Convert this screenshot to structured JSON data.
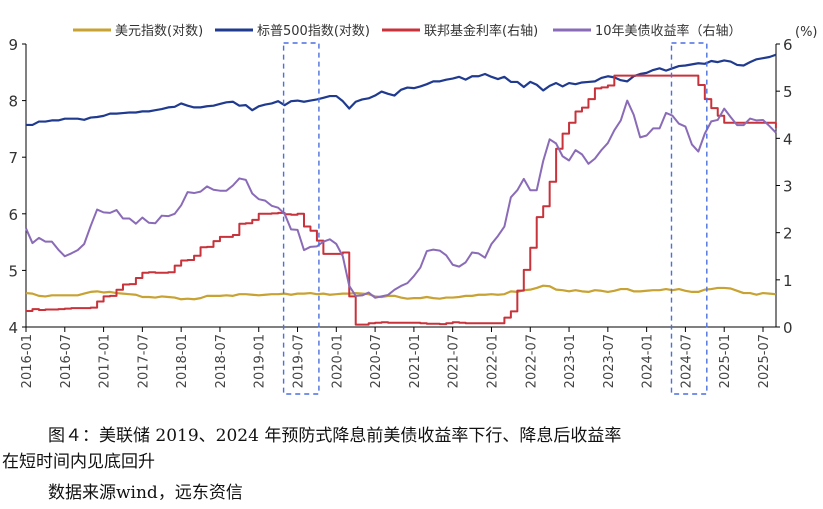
{
  "chart_data": {
    "type": "line",
    "x_start": "2016-01",
    "x_frequency": "monthly",
    "x_tick_labels": [
      "2016-01",
      "2016-07",
      "2017-01",
      "2017-07",
      "2018-01",
      "2018-07",
      "2019-01",
      "2019-07",
      "2020-01",
      "2020-07",
      "2021-01",
      "2021-07",
      "2022-01",
      "2022-07",
      "2023-01",
      "2023-07",
      "2024-01",
      "2024-07",
      "2025-01",
      "2025-07"
    ],
    "y_left": {
      "range": [
        4,
        9
      ],
      "ticks": [
        "4",
        "5",
        "6",
        "7",
        "8",
        "9"
      ]
    },
    "y_right": {
      "range": [
        0,
        6
      ],
      "ticks": [
        "0",
        "1",
        "2",
        "3",
        "4",
        "5",
        "6"
      ],
      "unit_label": "(%)"
    },
    "grid": false,
    "legend_position": "top",
    "highlight_periods": [
      [
        "2019-05",
        "2019-10"
      ],
      [
        "2024-05",
        "2024-10"
      ]
    ],
    "series": [
      {
        "name": "美元指数(对数)",
        "axis": "left",
        "color": "#c8a232",
        "values": [
          4.6,
          4.59,
          4.55,
          4.54,
          4.56,
          4.56,
          4.56,
          4.56,
          4.56,
          4.59,
          4.62,
          4.63,
          4.61,
          4.62,
          4.6,
          4.59,
          4.58,
          4.57,
          4.53,
          4.53,
          4.52,
          4.54,
          4.53,
          4.52,
          4.49,
          4.5,
          4.49,
          4.51,
          4.55,
          4.55,
          4.55,
          4.56,
          4.55,
          4.58,
          4.58,
          4.57,
          4.56,
          4.57,
          4.58,
          4.58,
          4.59,
          4.57,
          4.59,
          4.59,
          4.6,
          4.58,
          4.59,
          4.57,
          4.58,
          4.59,
          4.59,
          4.6,
          4.59,
          4.58,
          4.54,
          4.53,
          4.55,
          4.55,
          4.52,
          4.5,
          4.51,
          4.51,
          4.53,
          4.51,
          4.5,
          4.52,
          4.52,
          4.53,
          4.55,
          4.55,
          4.57,
          4.57,
          4.58,
          4.57,
          4.58,
          4.63,
          4.62,
          4.65,
          4.66,
          4.69,
          4.73,
          4.72,
          4.66,
          4.65,
          4.63,
          4.65,
          4.63,
          4.62,
          4.65,
          4.64,
          4.62,
          4.64,
          4.67,
          4.67,
          4.63,
          4.63,
          4.64,
          4.65,
          4.65,
          4.67,
          4.65,
          4.67,
          4.64,
          4.62,
          4.62,
          4.66,
          4.67,
          4.69,
          4.69,
          4.68,
          4.64,
          4.6,
          4.6,
          4.57,
          4.6,
          4.59,
          4.58
        ]
      },
      {
        "name": "标普500指数(对数)",
        "axis": "left",
        "color": "#1f3a8f",
        "values": [
          7.57,
          7.57,
          7.63,
          7.63,
          7.65,
          7.65,
          7.68,
          7.68,
          7.68,
          7.66,
          7.7,
          7.71,
          7.73,
          7.77,
          7.77,
          7.78,
          7.79,
          7.79,
          7.81,
          7.81,
          7.83,
          7.85,
          7.88,
          7.89,
          7.95,
          7.91,
          7.88,
          7.88,
          7.9,
          7.91,
          7.94,
          7.97,
          7.98,
          7.91,
          7.92,
          7.83,
          7.9,
          7.93,
          7.95,
          7.99,
          7.92,
          7.99,
          8.0,
          7.98,
          8.0,
          8.02,
          8.05,
          8.08,
          8.08,
          7.99,
          7.86,
          7.98,
          8.02,
          8.04,
          8.09,
          8.16,
          8.12,
          8.09,
          8.19,
          8.23,
          8.22,
          8.25,
          8.29,
          8.34,
          8.34,
          8.37,
          8.39,
          8.42,
          8.37,
          8.43,
          8.43,
          8.47,
          8.42,
          8.38,
          8.42,
          8.33,
          8.33,
          8.24,
          8.33,
          8.28,
          8.18,
          8.26,
          8.31,
          8.25,
          8.31,
          8.29,
          8.32,
          8.33,
          8.34,
          8.4,
          8.43,
          8.41,
          8.36,
          8.34,
          8.43,
          8.47,
          8.49,
          8.54,
          8.57,
          8.53,
          8.57,
          8.61,
          8.62,
          8.64,
          8.66,
          8.65,
          8.7,
          8.68,
          8.71,
          8.69,
          8.63,
          8.62,
          8.68,
          8.73,
          8.75,
          8.77,
          8.81
        ]
      },
      {
        "name": "联邦基金利率(右轴)",
        "axis": "right",
        "color": "#c8323a",
        "step": true,
        "values": [
          0.34,
          0.38,
          0.36,
          0.37,
          0.37,
          0.38,
          0.39,
          0.4,
          0.4,
          0.4,
          0.41,
          0.54,
          0.65,
          0.66,
          0.79,
          0.9,
          0.91,
          1.04,
          1.15,
          1.16,
          1.15,
          1.15,
          1.16,
          1.3,
          1.41,
          1.42,
          1.51,
          1.69,
          1.7,
          1.82,
          1.91,
          1.91,
          1.95,
          2.19,
          2.2,
          2.27,
          2.4,
          2.4,
          2.41,
          2.42,
          2.39,
          2.38,
          2.4,
          2.13,
          2.04,
          1.83,
          1.55,
          1.55,
          1.55,
          1.58,
          0.65,
          0.05,
          0.05,
          0.08,
          0.09,
          0.1,
          0.09,
          0.09,
          0.09,
          0.09,
          0.09,
          0.08,
          0.07,
          0.07,
          0.06,
          0.08,
          0.1,
          0.09,
          0.08,
          0.08,
          0.08,
          0.08,
          0.08,
          0.08,
          0.2,
          0.33,
          0.77,
          1.21,
          1.68,
          2.33,
          2.56,
          3.08,
          3.78,
          4.1,
          4.33,
          4.57,
          4.65,
          4.83,
          5.06,
          5.08,
          5.12,
          5.33,
          5.33,
          5.33,
          5.33,
          5.33,
          5.33,
          5.33,
          5.33,
          5.33,
          5.33,
          5.33,
          5.33,
          5.33,
          5.13,
          4.83,
          4.64,
          4.48,
          4.33,
          4.33,
          4.33,
          4.33,
          4.33,
          4.33,
          4.33,
          4.33,
          4.22
        ]
      },
      {
        "name": "10年美债收益率（右轴）",
        "axis": "right",
        "color": "#8a6bb8",
        "values": [
          2.09,
          1.78,
          1.89,
          1.81,
          1.81,
          1.64,
          1.5,
          1.56,
          1.63,
          1.76,
          2.14,
          2.49,
          2.43,
          2.42,
          2.48,
          2.3,
          2.3,
          2.19,
          2.32,
          2.21,
          2.2,
          2.36,
          2.35,
          2.4,
          2.58,
          2.86,
          2.84,
          2.87,
          2.98,
          2.91,
          2.89,
          2.89,
          3.0,
          3.15,
          3.12,
          2.83,
          2.71,
          2.68,
          2.57,
          2.53,
          2.4,
          2.07,
          2.06,
          1.63,
          1.7,
          1.71,
          1.81,
          1.86,
          1.76,
          1.5,
          0.87,
          0.66,
          0.67,
          0.73,
          0.62,
          0.65,
          0.68,
          0.79,
          0.87,
          0.93,
          1.08,
          1.26,
          1.61,
          1.64,
          1.62,
          1.52,
          1.32,
          1.28,
          1.37,
          1.58,
          1.56,
          1.47,
          1.76,
          1.93,
          2.13,
          2.75,
          2.9,
          3.14,
          2.9,
          2.9,
          3.52,
          3.98,
          3.89,
          3.62,
          3.53,
          3.75,
          3.66,
          3.46,
          3.57,
          3.75,
          3.9,
          4.17,
          4.38,
          4.8,
          4.5,
          4.02,
          4.06,
          4.21,
          4.21,
          4.54,
          4.48,
          4.31,
          4.25,
          3.87,
          3.72,
          4.1,
          4.36,
          4.39,
          4.63,
          4.45,
          4.28,
          4.28,
          4.42,
          4.38,
          4.39,
          4.26,
          4.12
        ]
      }
    ]
  },
  "caption": {
    "line1": "图４：美联储 2019、2024 年预防式降息前美债收益率下行、降息后收益率",
    "line2": "在短时间内见底回升",
    "source": "数据来源wind，远东资信"
  }
}
